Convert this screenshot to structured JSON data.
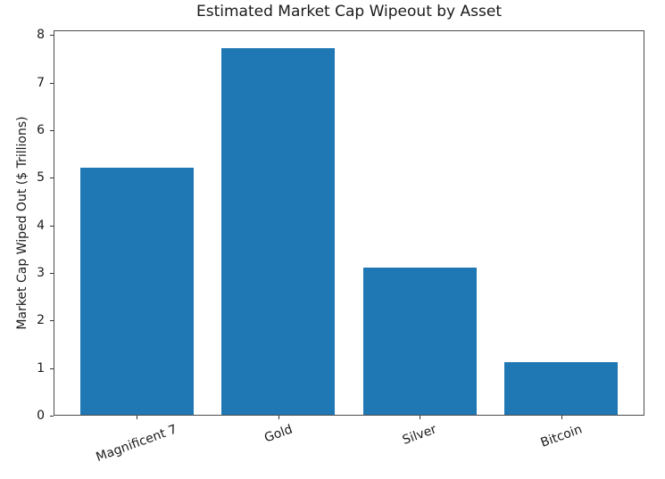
{
  "figure": {
    "title": "Estimated Market Cap Wipeout by Asset"
  },
  "chart_data": {
    "type": "bar",
    "title": "Estimated Market Cap Wipeout by Asset",
    "categories": [
      "Magnificent 7",
      "Gold",
      "Silver",
      "Bitcoin"
    ],
    "values": [
      5.2,
      7.7,
      3.1,
      1.1
    ],
    "xlabel": "",
    "ylabel": "Market Cap Wiped Out ($ Trillions)",
    "ylim": [
      0,
      8.1
    ],
    "yticks": [
      0,
      1,
      2,
      3,
      4,
      5,
      6,
      7,
      8
    ],
    "bar_color": "#1f77b4",
    "bar_width_fraction": 0.8,
    "x_tick_rotation_deg": 20,
    "grid": false,
    "legend_position": "none"
  }
}
